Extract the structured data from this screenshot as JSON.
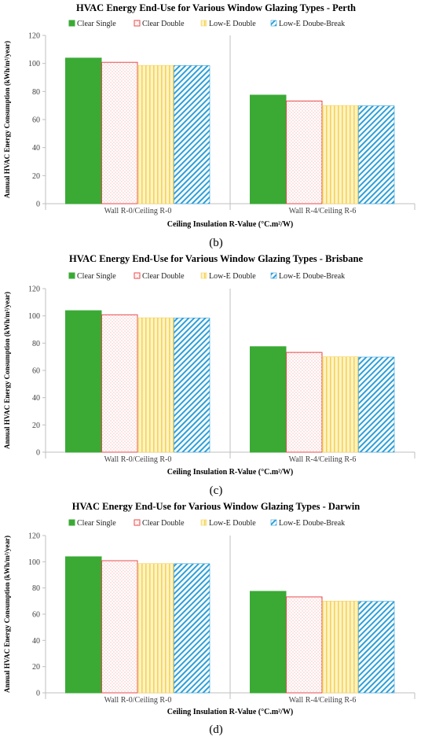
{
  "chart_data": [
    {
      "type": "bar",
      "title": "HVAC Energy End-Use for Various Window Glazing Types - Perth",
      "xlabel": "Ceiling Insulation  R-Value (°C.m²/W)",
      "ylabel": "Annual HVAC Energy Consumption (kWh/m²/year)",
      "ylim": [
        0,
        120
      ],
      "yticks": [
        "0",
        "20",
        "40",
        "60",
        "80",
        "100",
        "120"
      ],
      "categories": [
        "Wall R-0/Ceiling R-0",
        "Wall R-4/Ceiling R-6"
      ],
      "series": [
        {
          "name": "Clear Single",
          "values": [
            103.8,
            77.4
          ]
        },
        {
          "name": "Clear Double",
          "values": [
            100.8,
            73.2
          ]
        },
        {
          "name": "Low-E Double",
          "values": [
            98.6,
            70.0
          ]
        },
        {
          "name": "Low-E Doube-Break",
          "values": [
            98.5,
            69.8
          ]
        }
      ],
      "legend_position": "top",
      "grid": false,
      "caption": "(b)"
    },
    {
      "type": "bar",
      "title": "HVAC Energy End-Use for Various Window Glazing Types - Brisbane",
      "xlabel": "Ceiling Insulation  R-Value (°C.m²/W)",
      "ylabel": "Annual HVAC Energy Consumption (kWh/m²/year)",
      "ylim": [
        0,
        120
      ],
      "yticks": [
        "0",
        "20",
        "40",
        "60",
        "80",
        "100",
        "120"
      ],
      "categories": [
        "Wall R-0/Ceiling R-0",
        "Wall R-4/Ceiling R-6"
      ],
      "series": [
        {
          "name": "Clear Single",
          "values": [
            103.8,
            77.4
          ]
        },
        {
          "name": "Clear Double",
          "values": [
            100.8,
            73.2
          ]
        },
        {
          "name": "Low-E Double",
          "values": [
            98.6,
            70.0
          ]
        },
        {
          "name": "Low-E Doube-Break",
          "values": [
            98.5,
            69.8
          ]
        }
      ],
      "legend_position": "top",
      "grid": false,
      "caption": "(c)"
    },
    {
      "type": "bar",
      "title": "HVAC Energy End-Use for Various Window Glazing Types - Darwin",
      "xlabel": "Ceiling Insulation  R-Value (°C.m²/W)",
      "ylabel": "Annual HVAC Energy Consumption (kWh/m²/year)",
      "ylim": [
        0,
        120
      ],
      "yticks": [
        "0",
        "20",
        "40",
        "60",
        "80",
        "100",
        "120"
      ],
      "categories": [
        "Wall R-0/Ceiling R-0",
        "Wall R-4/Ceiling R-6"
      ],
      "series": [
        {
          "name": "Clear Single",
          "values": [
            103.8,
            77.4
          ]
        },
        {
          "name": "Clear Double",
          "values": [
            100.8,
            73.2
          ]
        },
        {
          "name": "Low-E Double",
          "values": [
            98.6,
            70.0
          ]
        },
        {
          "name": "Low-E Doube-Break",
          "values": [
            98.5,
            69.8
          ]
        }
      ],
      "legend_position": "top",
      "grid": false,
      "caption": "(d)"
    }
  ],
  "colors": {
    "clear_single": "#3aaa35",
    "clear_double_border": "#e8494b",
    "clear_double_dots": "#f4a1a3",
    "low_e_double_fill": "#fff3c4",
    "low_e_double_stripe": "#f3d35c",
    "low_e_break_stripe": "#2d9fd8",
    "axis": "#bfbfbf",
    "text": "#404040"
  }
}
